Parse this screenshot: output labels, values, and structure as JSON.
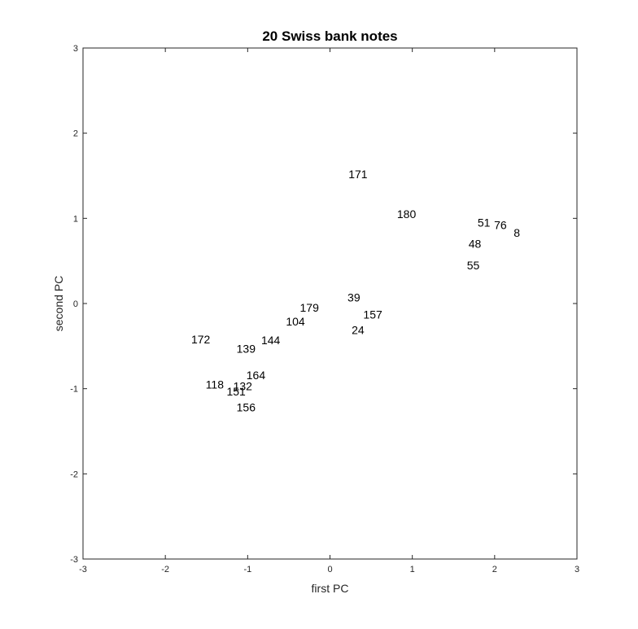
{
  "chart_data": {
    "type": "scatter",
    "title": "20 Swiss bank notes",
    "xlabel": "first PC",
    "ylabel": "second PC",
    "xlim": [
      -3,
      3
    ],
    "ylim": [
      -3,
      3
    ],
    "xticks": [
      -3,
      -2,
      -1,
      0,
      1,
      2,
      3
    ],
    "yticks": [
      -3,
      -2,
      -1,
      0,
      1,
      2,
      3
    ],
    "grid": false,
    "marker": "text-labels",
    "points": [
      {
        "label": "171",
        "x": 0.34,
        "y": 1.52
      },
      {
        "label": "180",
        "x": 0.93,
        "y": 1.05
      },
      {
        "label": "51",
        "x": 1.87,
        "y": 0.95
      },
      {
        "label": "76",
        "x": 2.07,
        "y": 0.92
      },
      {
        "label": "8",
        "x": 2.27,
        "y": 0.83
      },
      {
        "label": "48",
        "x": 1.76,
        "y": 0.7
      },
      {
        "label": "55",
        "x": 1.74,
        "y": 0.45
      },
      {
        "label": "39",
        "x": 0.29,
        "y": 0.07
      },
      {
        "label": "179",
        "x": -0.25,
        "y": -0.05
      },
      {
        "label": "157",
        "x": 0.52,
        "y": -0.13
      },
      {
        "label": "104",
        "x": -0.42,
        "y": -0.21
      },
      {
        "label": "24",
        "x": 0.34,
        "y": -0.31
      },
      {
        "label": "172",
        "x": -1.57,
        "y": -0.42
      },
      {
        "label": "144",
        "x": -0.72,
        "y": -0.43
      },
      {
        "label": "139",
        "x": -1.02,
        "y": -0.53
      },
      {
        "label": "164",
        "x": -0.9,
        "y": -0.84
      },
      {
        "label": "118",
        "x": -1.4,
        "y": -0.95
      },
      {
        "label": "132",
        "x": -1.06,
        "y": -0.97
      },
      {
        "label": "151",
        "x": -1.14,
        "y": -1.03
      },
      {
        "label": "156",
        "x": -1.02,
        "y": -1.22
      }
    ]
  }
}
